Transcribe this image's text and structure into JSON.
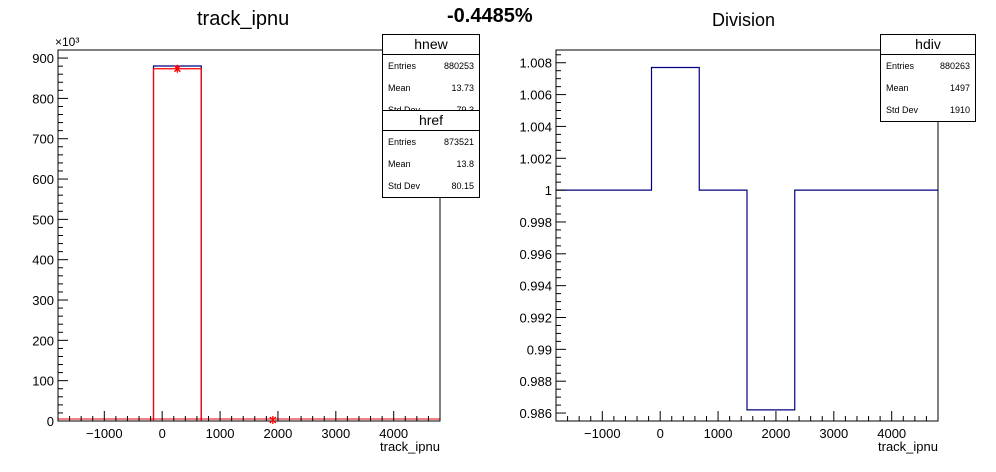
{
  "header": {
    "left_title": "track_ipnu",
    "center_text": "-0.4485%",
    "right_title": "Division"
  },
  "colors": {
    "hnew": "#000080",
    "href": "#ff0000",
    "hdiv": "#000080",
    "axis": "#000000"
  },
  "stats": {
    "hnew": {
      "title": "hnew",
      "rows": [
        {
          "k": "Entries",
          "v": "880253"
        },
        {
          "k": "Mean",
          "v": "13.73"
        },
        {
          "k": "Std Dev",
          "v": "79.3"
        }
      ]
    },
    "href": {
      "title": "href",
      "rows": [
        {
          "k": "Entries",
          "v": "873521"
        },
        {
          "k": "Mean",
          "v": "13.8"
        },
        {
          "k": "Std Dev",
          "v": "80.15"
        }
      ]
    },
    "hdiv": {
      "title": "hdiv",
      "rows": [
        {
          "k": "Entries",
          "v": "880263"
        },
        {
          "k": "Mean",
          "v": "1497"
        },
        {
          "k": "Std Dev",
          "v": "1910"
        }
      ]
    }
  },
  "chart_data": [
    {
      "type": "histogram",
      "title": "track_ipnu",
      "xlabel": "track_ipnu",
      "ylabel": "",
      "y_multiplier": "×10³",
      "xlim": [
        -1800,
        4800
      ],
      "ylim": [
        0,
        920
      ],
      "x_ticks": [
        -1000,
        0,
        1000,
        2000,
        3000,
        4000
      ],
      "x_tick_labels": [
        "−1000",
        "0",
        "1000",
        "2000",
        "3000",
        "4000"
      ],
      "y_ticks": [
        0,
        100,
        200,
        300,
        400,
        500,
        600,
        700,
        800,
        900
      ],
      "y_tick_labels": [
        "0",
        "100",
        "200",
        "300",
        "400",
        "500",
        "600",
        "700",
        "800",
        "900"
      ],
      "bin_edges": [
        -1800,
        -975,
        -150,
        675,
        1500,
        2325,
        3150,
        3975,
        4800
      ],
      "series": [
        {
          "name": "hnew",
          "values": [
            0,
            0,
            880.253,
            0,
            0,
            0,
            0,
            0
          ]
        },
        {
          "name": "href",
          "values": [
            0,
            0,
            873.521,
            0,
            0,
            0,
            0,
            0
          ]
        }
      ],
      "markers": [
        {
          "x": 262,
          "y": 873.5
        },
        {
          "x": 1912,
          "y": 0
        }
      ]
    },
    {
      "type": "histogram",
      "title": "Division",
      "xlabel": "track_ipnu",
      "ylabel": "",
      "xlim": [
        -1800,
        4800
      ],
      "ylim": [
        0.9855,
        1.0088
      ],
      "x_ticks": [
        -1000,
        0,
        1000,
        2000,
        3000,
        4000
      ],
      "x_tick_labels": [
        "−1000",
        "0",
        "1000",
        "2000",
        "3000",
        "4000"
      ],
      "y_ticks": [
        0.986,
        0.988,
        0.99,
        0.992,
        0.994,
        0.996,
        0.998,
        1,
        1.002,
        1.004,
        1.006,
        1.008
      ],
      "y_tick_labels": [
        "0.986",
        "0.988",
        "0.99",
        "0.992",
        "0.994",
        "0.996",
        "0.998",
        "1",
        "1.002",
        "1.004",
        "1.006",
        "1.008"
      ],
      "bin_edges": [
        -1800,
        -975,
        -150,
        675,
        1500,
        2325,
        3150,
        3975,
        4800
      ],
      "series": [
        {
          "name": "hdiv",
          "values": [
            1,
            1,
            1.0077,
            1,
            0.9862,
            1,
            1,
            1
          ]
        }
      ]
    }
  ]
}
